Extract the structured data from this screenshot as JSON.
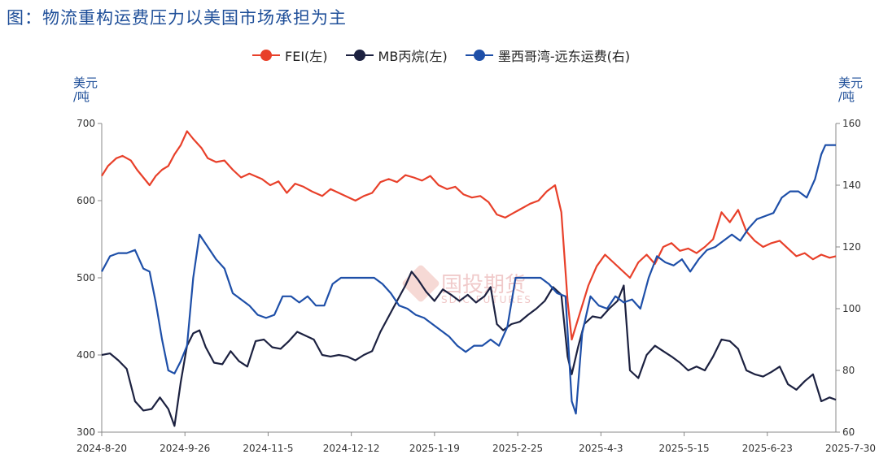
{
  "title": "图：物流重构运费压力以美国市场承担为主",
  "watermark": {
    "brand": "国投期货",
    "sub": "SDIC FUTURES"
  },
  "chart_data": {
    "type": "line",
    "legend_position": "top",
    "left_unit": "美元\n/吨",
    "right_unit": "美元\n/吨",
    "left_ylim": [
      300,
      700
    ],
    "left_yticks": [
      300,
      400,
      500,
      600,
      700
    ],
    "right_ylim": [
      60,
      160
    ],
    "right_yticks": [
      60,
      80,
      100,
      120,
      140,
      160
    ],
    "x_range": [
      "2024-08-20",
      "2025-08-08"
    ],
    "x_ticks": [
      "2024-8-20",
      "2024-9-26",
      "2024-11-5",
      "2024-12-12",
      "2025-1-19",
      "2025-2-25",
      "2025-4-3",
      "2025-5-15",
      "2025-6-23",
      "2025-7-30"
    ],
    "series": [
      {
        "name": "FEI(左)",
        "axis": "left",
        "color": "#e8402a",
        "points": [
          [
            "2024-08-20",
            632
          ],
          [
            "2024-08-23",
            645
          ],
          [
            "2024-08-27",
            655
          ],
          [
            "2024-08-30",
            658
          ],
          [
            "2024-09-03",
            652
          ],
          [
            "2024-09-06",
            640
          ],
          [
            "2024-09-09",
            630
          ],
          [
            "2024-09-12",
            620
          ],
          [
            "2024-09-15",
            632
          ],
          [
            "2024-09-18",
            640
          ],
          [
            "2024-09-21",
            645
          ],
          [
            "2024-09-24",
            660
          ],
          [
            "2024-09-27",
            672
          ],
          [
            "2024-09-30",
            690
          ],
          [
            "2024-10-03",
            680
          ],
          [
            "2024-10-07",
            668
          ],
          [
            "2024-10-10",
            655
          ],
          [
            "2024-10-14",
            650
          ],
          [
            "2024-10-18",
            652
          ],
          [
            "2024-10-22",
            640
          ],
          [
            "2024-10-26",
            630
          ],
          [
            "2024-10-30",
            635
          ],
          [
            "2024-11-05",
            628
          ],
          [
            "2024-11-09",
            620
          ],
          [
            "2024-11-13",
            625
          ],
          [
            "2024-11-17",
            610
          ],
          [
            "2024-11-21",
            622
          ],
          [
            "2024-11-25",
            618
          ],
          [
            "2024-11-29",
            612
          ],
          [
            "2024-12-04",
            606
          ],
          [
            "2024-12-08",
            615
          ],
          [
            "2024-12-12",
            610
          ],
          [
            "2024-12-16",
            605
          ],
          [
            "2024-12-20",
            600
          ],
          [
            "2024-12-24",
            606
          ],
          [
            "2024-12-28",
            610
          ],
          [
            "2025-01-01",
            624
          ],
          [
            "2025-01-05",
            628
          ],
          [
            "2025-01-09",
            624
          ],
          [
            "2025-01-13",
            633
          ],
          [
            "2025-01-17",
            630
          ],
          [
            "2025-01-21",
            626
          ],
          [
            "2025-01-25",
            632
          ],
          [
            "2025-01-29",
            620
          ],
          [
            "2025-02-02",
            615
          ],
          [
            "2025-02-06",
            618
          ],
          [
            "2025-02-10",
            608
          ],
          [
            "2025-02-14",
            604
          ],
          [
            "2025-02-18",
            606
          ],
          [
            "2025-02-22",
            598
          ],
          [
            "2025-02-26",
            582
          ],
          [
            "2025-03-02",
            578
          ],
          [
            "2025-03-06",
            584
          ],
          [
            "2025-03-10",
            590
          ],
          [
            "2025-03-14",
            596
          ],
          [
            "2025-03-18",
            600
          ],
          [
            "2025-03-22",
            612
          ],
          [
            "2025-03-26",
            620
          ],
          [
            "2025-03-29",
            585
          ],
          [
            "2025-04-01",
            470
          ],
          [
            "2025-04-03",
            420
          ],
          [
            "2025-04-07",
            455
          ],
          [
            "2025-04-11",
            490
          ],
          [
            "2025-04-15",
            515
          ],
          [
            "2025-04-19",
            530
          ],
          [
            "2025-04-23",
            520
          ],
          [
            "2025-04-27",
            510
          ],
          [
            "2025-05-01",
            500
          ],
          [
            "2025-05-05",
            520
          ],
          [
            "2025-05-09",
            530
          ],
          [
            "2025-05-13",
            518
          ],
          [
            "2025-05-17",
            540
          ],
          [
            "2025-05-21",
            545
          ],
          [
            "2025-05-25",
            535
          ],
          [
            "2025-05-29",
            538
          ],
          [
            "2025-06-02",
            532
          ],
          [
            "2025-06-06",
            540
          ],
          [
            "2025-06-10",
            550
          ],
          [
            "2025-06-14",
            585
          ],
          [
            "2025-06-18",
            572
          ],
          [
            "2025-06-22",
            588
          ],
          [
            "2025-06-26",
            560
          ],
          [
            "2025-06-30",
            548
          ],
          [
            "2025-07-04",
            540
          ],
          [
            "2025-07-08",
            545
          ],
          [
            "2025-07-12",
            548
          ],
          [
            "2025-07-16",
            538
          ],
          [
            "2025-07-20",
            528
          ],
          [
            "2025-07-24",
            532
          ],
          [
            "2025-07-28",
            524
          ],
          [
            "2025-08-01",
            530
          ],
          [
            "2025-08-05",
            526
          ],
          [
            "2025-08-08",
            528
          ]
        ]
      },
      {
        "name": "MB丙烷(左)",
        "axis": "left",
        "color": "#1c2140",
        "points": [
          [
            "2024-08-20",
            400
          ],
          [
            "2024-08-24",
            402
          ],
          [
            "2024-08-28",
            393
          ],
          [
            "2024-09-01",
            382
          ],
          [
            "2024-09-05",
            340
          ],
          [
            "2024-09-09",
            328
          ],
          [
            "2024-09-13",
            330
          ],
          [
            "2024-09-17",
            345
          ],
          [
            "2024-09-21",
            330
          ],
          [
            "2024-09-24",
            308
          ],
          [
            "2024-09-27",
            365
          ],
          [
            "2024-09-30",
            412
          ],
          [
            "2024-10-03",
            428
          ],
          [
            "2024-10-06",
            432
          ],
          [
            "2024-10-09",
            410
          ],
          [
            "2024-10-13",
            390
          ],
          [
            "2024-10-17",
            388
          ],
          [
            "2024-10-21",
            405
          ],
          [
            "2024-10-25",
            392
          ],
          [
            "2024-10-29",
            385
          ],
          [
            "2024-11-02",
            418
          ],
          [
            "2024-11-06",
            420
          ],
          [
            "2024-11-10",
            410
          ],
          [
            "2024-11-14",
            408
          ],
          [
            "2024-11-18",
            418
          ],
          [
            "2024-11-22",
            430
          ],
          [
            "2024-11-26",
            425
          ],
          [
            "2024-11-30",
            420
          ],
          [
            "2024-12-04",
            400
          ],
          [
            "2024-12-08",
            398
          ],
          [
            "2024-12-12",
            400
          ],
          [
            "2024-12-16",
            398
          ],
          [
            "2024-12-20",
            393
          ],
          [
            "2024-12-24",
            400
          ],
          [
            "2024-12-28",
            405
          ],
          [
            "2025-01-01",
            430
          ],
          [
            "2025-01-05",
            450
          ],
          [
            "2025-01-09",
            470
          ],
          [
            "2025-01-13",
            490
          ],
          [
            "2025-01-16",
            508
          ],
          [
            "2025-01-19",
            498
          ],
          [
            "2025-01-23",
            482
          ],
          [
            "2025-01-27",
            470
          ],
          [
            "2025-01-31",
            485
          ],
          [
            "2025-02-04",
            478
          ],
          [
            "2025-02-08",
            470
          ],
          [
            "2025-02-12",
            478
          ],
          [
            "2025-02-16",
            468
          ],
          [
            "2025-02-20",
            476
          ],
          [
            "2025-02-23",
            488
          ],
          [
            "2025-02-26",
            440
          ],
          [
            "2025-03-01",
            432
          ],
          [
            "2025-03-05",
            440
          ],
          [
            "2025-03-09",
            443
          ],
          [
            "2025-03-13",
            452
          ],
          [
            "2025-03-17",
            460
          ],
          [
            "2025-03-21",
            470
          ],
          [
            "2025-03-25",
            488
          ],
          [
            "2025-03-29",
            478
          ],
          [
            "2025-04-01",
            398
          ],
          [
            "2025-04-03",
            375
          ],
          [
            "2025-04-06",
            410
          ],
          [
            "2025-04-09",
            440
          ],
          [
            "2025-04-13",
            450
          ],
          [
            "2025-04-17",
            448
          ],
          [
            "2025-04-21",
            460
          ],
          [
            "2025-04-25",
            470
          ],
          [
            "2025-04-28",
            490
          ],
          [
            "2025-05-01",
            380
          ],
          [
            "2025-05-05",
            370
          ],
          [
            "2025-05-09",
            400
          ],
          [
            "2025-05-13",
            412
          ],
          [
            "2025-05-17",
            405
          ],
          [
            "2025-05-21",
            398
          ],
          [
            "2025-05-25",
            390
          ],
          [
            "2025-05-29",
            380
          ],
          [
            "2025-06-02",
            385
          ],
          [
            "2025-06-06",
            380
          ],
          [
            "2025-06-10",
            398
          ],
          [
            "2025-06-14",
            420
          ],
          [
            "2025-06-18",
            418
          ],
          [
            "2025-06-22",
            408
          ],
          [
            "2025-06-26",
            380
          ],
          [
            "2025-06-30",
            375
          ],
          [
            "2025-07-04",
            372
          ],
          [
            "2025-07-08",
            378
          ],
          [
            "2025-07-12",
            385
          ],
          [
            "2025-07-16",
            362
          ],
          [
            "2025-07-20",
            355
          ],
          [
            "2025-07-24",
            366
          ],
          [
            "2025-07-28",
            375
          ],
          [
            "2025-08-01",
            340
          ],
          [
            "2025-08-05",
            345
          ],
          [
            "2025-08-08",
            342
          ]
        ]
      },
      {
        "name": "墨西哥湾-远东运费(右)",
        "axis": "right",
        "color": "#1e4fa8",
        "points": [
          [
            "2024-08-20",
            112
          ],
          [
            "2024-08-24",
            117
          ],
          [
            "2024-08-28",
            118
          ],
          [
            "2024-09-01",
            118
          ],
          [
            "2024-09-05",
            119
          ],
          [
            "2024-09-09",
            113
          ],
          [
            "2024-09-12",
            112
          ],
          [
            "2024-09-15",
            102
          ],
          [
            "2024-09-18",
            90
          ],
          [
            "2024-09-21",
            80
          ],
          [
            "2024-09-24",
            79
          ],
          [
            "2024-09-27",
            83
          ],
          [
            "2024-09-30",
            88
          ],
          [
            "2024-10-03",
            110
          ],
          [
            "2024-10-06",
            124
          ],
          [
            "2024-10-10",
            120
          ],
          [
            "2024-10-14",
            116
          ],
          [
            "2024-10-18",
            113
          ],
          [
            "2024-10-22",
            105
          ],
          [
            "2024-10-26",
            103
          ],
          [
            "2024-10-30",
            101
          ],
          [
            "2024-11-03",
            98
          ],
          [
            "2024-11-07",
            97
          ],
          [
            "2024-11-11",
            98
          ],
          [
            "2024-11-15",
            104
          ],
          [
            "2024-11-19",
            104
          ],
          [
            "2024-11-23",
            102
          ],
          [
            "2024-11-27",
            104
          ],
          [
            "2024-12-01",
            101
          ],
          [
            "2024-12-05",
            101
          ],
          [
            "2024-12-09",
            108
          ],
          [
            "2024-12-13",
            110
          ],
          [
            "2024-12-17",
            110
          ],
          [
            "2024-12-21",
            110
          ],
          [
            "2024-12-25",
            110
          ],
          [
            "2024-12-29",
            110
          ],
          [
            "2025-01-02",
            108
          ],
          [
            "2025-01-06",
            105
          ],
          [
            "2025-01-10",
            101
          ],
          [
            "2025-01-14",
            100
          ],
          [
            "2025-01-18",
            98
          ],
          [
            "2025-01-22",
            97
          ],
          [
            "2025-01-26",
            95
          ],
          [
            "2025-01-30",
            93
          ],
          [
            "2025-02-03",
            91
          ],
          [
            "2025-02-07",
            88
          ],
          [
            "2025-02-11",
            86
          ],
          [
            "2025-02-15",
            88
          ],
          [
            "2025-02-19",
            88
          ],
          [
            "2025-02-23",
            90
          ],
          [
            "2025-02-27",
            88
          ],
          [
            "2025-03-03",
            94
          ],
          [
            "2025-03-07",
            110
          ],
          [
            "2025-03-11",
            110
          ],
          [
            "2025-03-15",
            110
          ],
          [
            "2025-03-19",
            110
          ],
          [
            "2025-03-23",
            108
          ],
          [
            "2025-03-27",
            105
          ],
          [
            "2025-03-31",
            104
          ],
          [
            "2025-04-03",
            70
          ],
          [
            "2025-04-05",
            66
          ],
          [
            "2025-04-08",
            92
          ],
          [
            "2025-04-12",
            104
          ],
          [
            "2025-04-16",
            101
          ],
          [
            "2025-04-20",
            100
          ],
          [
            "2025-04-24",
            104
          ],
          [
            "2025-04-28",
            102
          ],
          [
            "2025-05-02",
            103
          ],
          [
            "2025-05-06",
            100
          ],
          [
            "2025-05-10",
            110
          ],
          [
            "2025-05-14",
            117
          ],
          [
            "2025-05-18",
            115
          ],
          [
            "2025-05-22",
            114
          ],
          [
            "2025-05-26",
            116
          ],
          [
            "2025-05-30",
            112
          ],
          [
            "2025-06-03",
            116
          ],
          [
            "2025-06-07",
            119
          ],
          [
            "2025-06-11",
            120
          ],
          [
            "2025-06-15",
            122
          ],
          [
            "2025-06-19",
            124
          ],
          [
            "2025-06-23",
            122
          ],
          [
            "2025-06-27",
            126
          ],
          [
            "2025-07-01",
            129
          ],
          [
            "2025-07-05",
            130
          ],
          [
            "2025-07-09",
            131
          ],
          [
            "2025-07-13",
            136
          ],
          [
            "2025-07-17",
            138
          ],
          [
            "2025-07-21",
            138
          ],
          [
            "2025-07-25",
            136
          ],
          [
            "2025-07-29",
            142
          ],
          [
            "2025-08-01",
            150
          ],
          [
            "2025-08-03",
            153
          ],
          [
            "2025-08-08",
            153
          ]
        ]
      }
    ]
  }
}
